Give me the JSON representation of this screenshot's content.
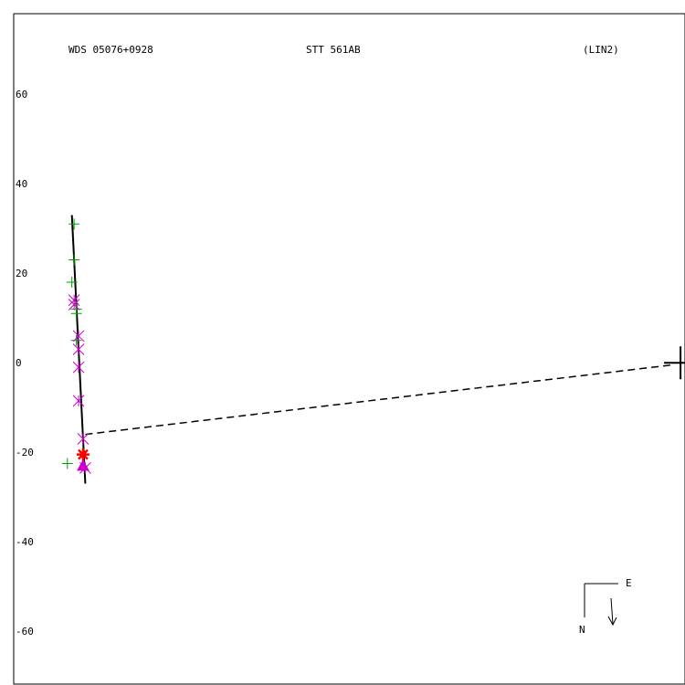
{
  "header": {
    "left": "WDS 05076+0928",
    "center": "STT 561AB",
    "right": "(LIN2)"
  },
  "compass": {
    "east": "E",
    "north": "N"
  },
  "colors": {
    "frame": "#000000",
    "orbit": "#000000",
    "plus_marker": "#00a000",
    "star_marker": "#cc00cc",
    "highlight_star": "#ff0000",
    "triangle": "#cc00cc"
  },
  "chart_data": {
    "type": "scatter",
    "y_ticks": [
      "60",
      "40",
      "20",
      "0",
      "-20",
      "-40",
      "-60"
    ],
    "y_tick_values": [
      60,
      40,
      20,
      0,
      -20,
      -40,
      -60
    ],
    "ylim": [
      -72,
      78
    ],
    "xlim": [
      -13,
      137
    ],
    "primary_position": [
      136,
      0
    ],
    "orbit_line": [
      [
        0,
        33
      ],
      [
        3,
        -27
      ]
    ],
    "projection_line": [
      [
        3,
        -16
      ],
      [
        134,
        -0.5
      ]
    ],
    "series": [
      {
        "marker": "plus",
        "points": [
          [
            0.5,
            31
          ],
          [
            0.5,
            23
          ],
          [
            0,
            18
          ],
          [
            1,
            12
          ],
          [
            1,
            11
          ],
          [
            1,
            5
          ],
          [
            -1,
            -22.5
          ]
        ]
      },
      {
        "marker": "asterisk",
        "points": [
          [
            0.5,
            14
          ],
          [
            0.5,
            13
          ],
          [
            1.5,
            6
          ],
          [
            1.5,
            3
          ],
          [
            1.5,
            -1
          ],
          [
            1.5,
            -8.5
          ],
          [
            2.5,
            -17
          ],
          [
            3,
            -23.5
          ]
        ]
      },
      {
        "marker": "star",
        "points": [
          [
            2.5,
            -20.5
          ]
        ]
      },
      {
        "marker": "triangle",
        "points": [
          [
            2.5,
            -23
          ]
        ]
      }
    ]
  }
}
